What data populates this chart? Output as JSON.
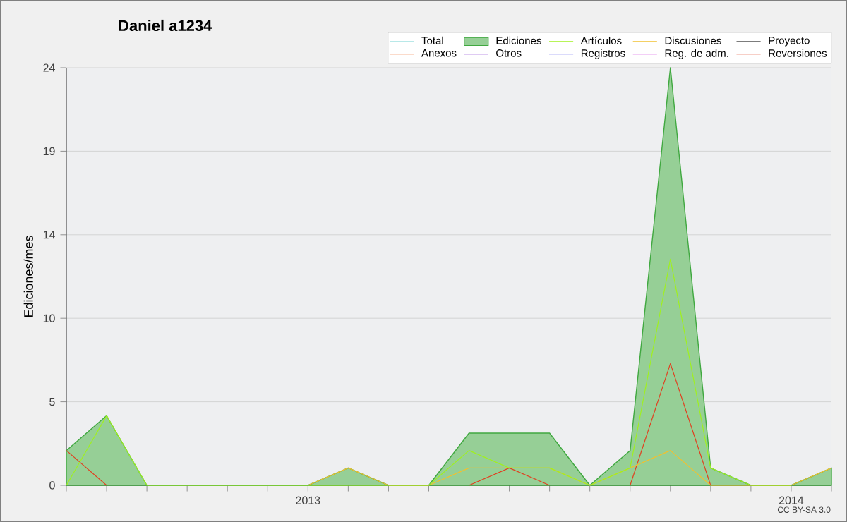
{
  "chart_data": {
    "type": "line",
    "title": "Daniel a1234",
    "ylabel": "Ediciones/mes",
    "annotations": [
      "CC BY-SA 3.0"
    ],
    "x": [
      "2012-07",
      "2012-08",
      "2012-09",
      "2012-10",
      "2012-11",
      "2012-12",
      "2013-01",
      "2013-02",
      "2013-03",
      "2013-04",
      "2013-05",
      "2013-06",
      "2013-07",
      "2013-08",
      "2013-09",
      "2013-10",
      "2013-11",
      "2013-12",
      "2014-01",
      "2014-02"
    ],
    "xlim": [
      "2012-07",
      "2014-02"
    ],
    "xticks": [
      {
        "value": "2012-07",
        "label": null
      },
      {
        "value": "2012-08",
        "label": null
      },
      {
        "value": "2012-09",
        "label": null
      },
      {
        "value": "2012-10",
        "label": null
      },
      {
        "value": "2012-11",
        "label": null
      },
      {
        "value": "2012-12",
        "label": null
      },
      {
        "value": "2013-01",
        "label": "2013"
      },
      {
        "value": "2013-02",
        "label": null
      },
      {
        "value": "2013-03",
        "label": null
      },
      {
        "value": "2013-04",
        "label": null
      },
      {
        "value": "2013-05",
        "label": null
      },
      {
        "value": "2013-06",
        "label": null
      },
      {
        "value": "2013-07",
        "label": null
      },
      {
        "value": "2013-08",
        "label": null
      },
      {
        "value": "2013-09",
        "label": null
      },
      {
        "value": "2013-10",
        "label": null
      },
      {
        "value": "2013-11",
        "label": null
      },
      {
        "value": "2013-12",
        "label": null
      },
      {
        "value": "2014-01",
        "label": "2014"
      },
      {
        "value": "2014-02",
        "label": null
      }
    ],
    "ylim": [
      0,
      24
    ],
    "yticks": [
      0,
      {
        "value": 4.8,
        "label": "5"
      },
      {
        "value": 9.6,
        "label": "10"
      },
      {
        "value": 14.4,
        "label": "14"
      },
      {
        "value": 19.2,
        "label": "19"
      },
      24
    ],
    "grid": "y",
    "legend": "top right",
    "marker": "none",
    "line_style": "solid",
    "series": [
      {
        "name": "Total",
        "color": "#a0e0e0",
        "values": [
          null,
          null,
          null,
          null,
          null,
          null,
          null,
          null,
          null,
          null,
          null,
          null,
          null,
          null,
          null,
          null,
          null,
          null,
          null,
          null
        ]
      },
      {
        "name": "Ediciones",
        "color": "#40a840",
        "type": "area",
        "values": [
          2,
          4,
          0,
          0,
          0,
          0,
          0,
          1,
          0,
          0,
          3,
          3,
          3,
          0,
          2,
          24,
          1,
          0,
          0,
          1
        ]
      },
      {
        "name": "Artículos",
        "color": "#a0f020",
        "values": [
          0,
          4,
          0,
          0,
          0,
          0,
          0,
          0,
          0,
          0,
          2,
          1,
          1,
          0,
          1,
          13,
          1,
          0,
          0,
          null
        ]
      },
      {
        "name": "Discusiones",
        "color": "#f0c030",
        "values": [
          null,
          null,
          null,
          null,
          null,
          null,
          0,
          1,
          0,
          0,
          1,
          1,
          1,
          0,
          1,
          2,
          0,
          0,
          0,
          1
        ]
      },
      {
        "name": "Proyecto",
        "color": "#505050",
        "values": [
          null,
          null,
          null,
          null,
          null,
          null,
          null,
          null,
          null,
          null,
          null,
          null,
          null,
          null,
          null,
          null,
          null,
          null,
          null,
          null
        ]
      },
      {
        "name": "Anexos",
        "color": "#f07030",
        "values": [
          null,
          null,
          null,
          null,
          null,
          null,
          null,
          null,
          null,
          null,
          null,
          null,
          null,
          null,
          null,
          null,
          null,
          null,
          null,
          null
        ]
      },
      {
        "name": "Otros",
        "color": "#8030d0",
        "values": [
          null,
          null,
          null,
          null,
          null,
          null,
          null,
          null,
          null,
          null,
          null,
          null,
          null,
          null,
          null,
          null,
          null,
          null,
          null,
          null
        ]
      },
      {
        "name": "Registros",
        "color": "#7070f0",
        "values": [
          null,
          null,
          null,
          null,
          null,
          null,
          null,
          null,
          null,
          null,
          null,
          null,
          null,
          null,
          null,
          null,
          null,
          null,
          null,
          null
        ]
      },
      {
        "name": "Reg. de adm.",
        "color": "#d040e0",
        "values": [
          null,
          null,
          null,
          null,
          null,
          null,
          null,
          null,
          null,
          null,
          null,
          null,
          null,
          null,
          null,
          null,
          null,
          null,
          null,
          null
        ]
      },
      {
        "name": "Reversiones",
        "color": "#e04020",
        "values": [
          2,
          0,
          null,
          null,
          null,
          null,
          null,
          null,
          null,
          null,
          0,
          1,
          0,
          null,
          0,
          7,
          0,
          null,
          null,
          null
        ]
      }
    ]
  }
}
